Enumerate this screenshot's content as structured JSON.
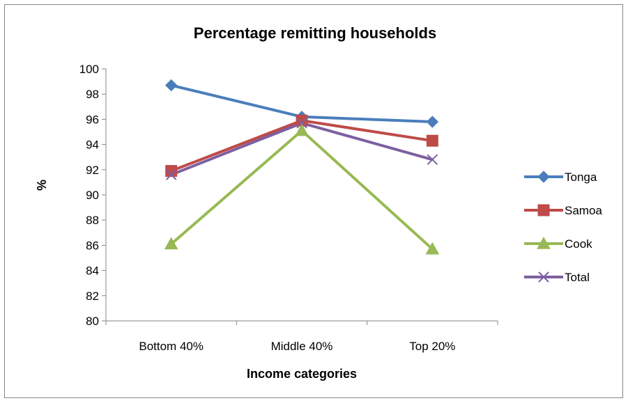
{
  "chart_data": {
    "type": "line",
    "title": "Percentage remitting households",
    "xlabel": "Income categories",
    "ylabel": "%",
    "categories": [
      "Bottom 40%",
      "Middle 40%",
      "Top 20%"
    ],
    "ylim": [
      80,
      100
    ],
    "yticks": [
      "80",
      "82",
      "84",
      "86",
      "88",
      "90",
      "92",
      "94",
      "96",
      "98",
      "100"
    ],
    "grid": false,
    "legend": "right",
    "series": [
      {
        "name": "Tonga",
        "values": [
          98.7,
          96.2,
          95.8
        ],
        "color": "#4a7ebb",
        "marker": "diamond"
      },
      {
        "name": "Samoa",
        "values": [
          91.9,
          95.9,
          94.3
        ],
        "color": "#be4b48",
        "marker": "square"
      },
      {
        "name": "Cook",
        "values": [
          86.1,
          95.1,
          85.7
        ],
        "color": "#98b954",
        "marker": "triangle"
      },
      {
        "name": "Total",
        "values": [
          91.6,
          95.7,
          92.8
        ],
        "color": "#7d60a0",
        "marker": "x"
      }
    ]
  }
}
